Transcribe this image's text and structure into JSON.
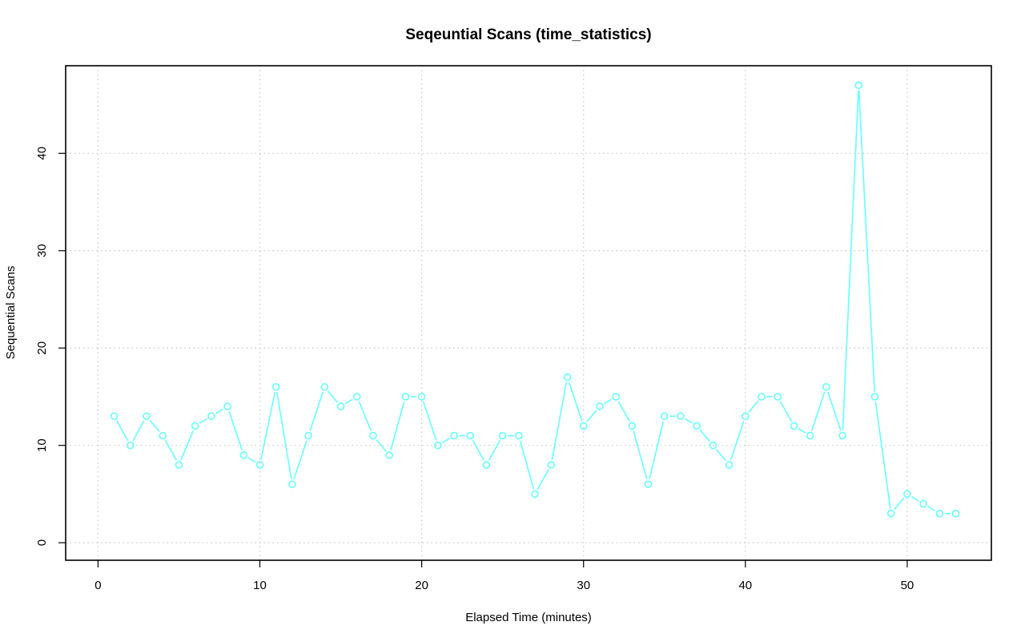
{
  "chart_data": {
    "type": "line",
    "title": "Seqeuntial Scans (time_statistics)",
    "xlabel": "Elapsed Time (minutes)",
    "ylabel": "Sequential Scans",
    "xlim": [
      -2,
      55.2
    ],
    "ylim": [
      -1.8,
      49
    ],
    "x_ticks": [
      0,
      10,
      20,
      30,
      40,
      50
    ],
    "y_ticks": [
      0,
      10,
      20,
      30,
      40
    ],
    "grid": true,
    "series": [
      {
        "color": "#66ffff",
        "markers": "open-circle",
        "x": [
          1,
          2,
          3,
          4,
          5,
          6,
          7,
          8,
          9,
          10,
          11,
          12,
          13,
          14,
          15,
          16,
          17,
          18,
          19,
          20,
          21,
          22,
          23,
          24,
          25,
          26,
          27,
          28,
          29,
          30,
          31,
          32,
          33,
          34,
          35,
          36,
          37,
          38,
          39,
          40,
          41,
          42,
          43,
          44,
          45,
          46,
          47,
          48,
          49,
          50,
          51,
          52,
          53
        ],
        "values": [
          13,
          10,
          13,
          11,
          8,
          12,
          13,
          14,
          9,
          8,
          16,
          6,
          11,
          16,
          14,
          15,
          11,
          9,
          15,
          15,
          10,
          11,
          11,
          8,
          11,
          11,
          5,
          8,
          17,
          12,
          14,
          15,
          12,
          6,
          13,
          13,
          12,
          10,
          8,
          13,
          15,
          15,
          12,
          11,
          16,
          11,
          47,
          15,
          3,
          5,
          4,
          3,
          3
        ]
      }
    ]
  }
}
